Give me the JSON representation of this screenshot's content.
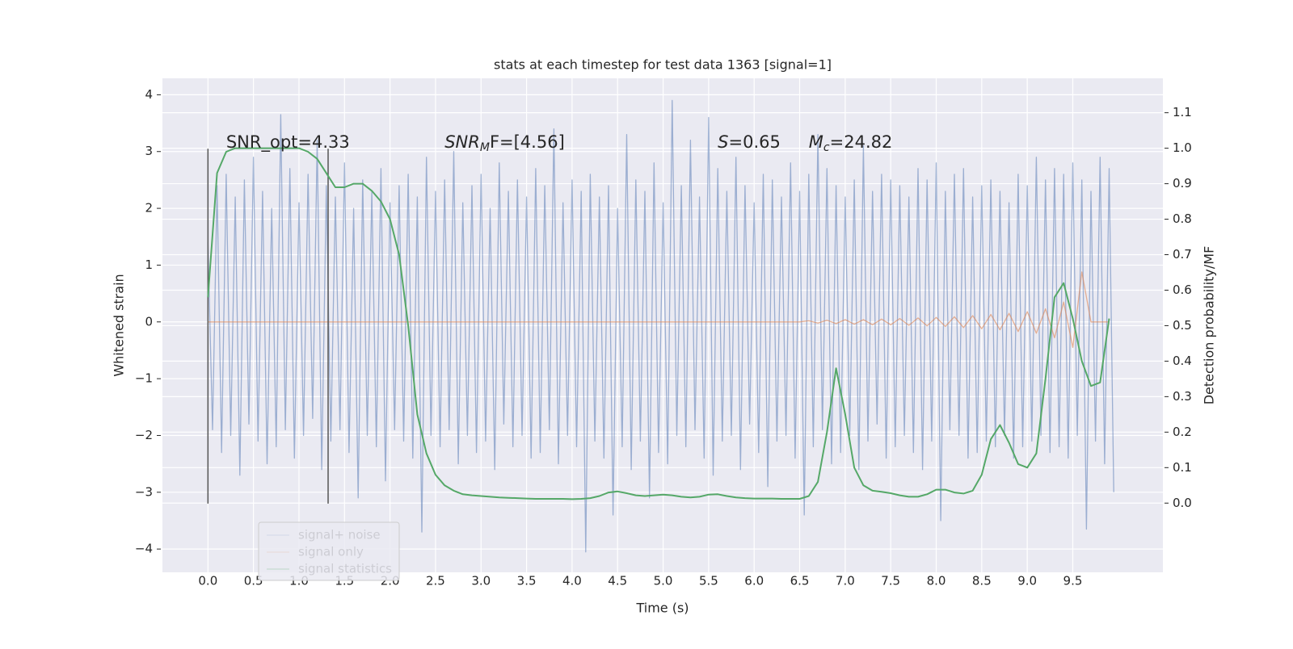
{
  "chart_data": {
    "type": "line",
    "title": "stats at each timestep for test data 1363 [signal=1]",
    "xlabel": "Time (s)",
    "ylabel": "Whitened strain",
    "y2label": "Detection probability/MF",
    "grid": true,
    "legend": "lower left",
    "xlim": [
      -0.5,
      10.49
    ],
    "ylim": [
      -4.41,
      4.29
    ],
    "y2lim": [
      -0.195,
      1.197
    ],
    "xticks": [
      {
        "value": 0,
        "label": "0.0"
      },
      0.5,
      {
        "value": 1,
        "label": "1.0"
      },
      1.5,
      {
        "value": 2,
        "label": "2.0"
      },
      2.5,
      {
        "value": 3,
        "label": "3.0"
      },
      3.5,
      {
        "value": 4,
        "label": "4.0"
      },
      4.5,
      {
        "value": 5,
        "label": "5.0"
      },
      5.5,
      {
        "value": 6,
        "label": "6.0"
      },
      6.5,
      {
        "value": 7,
        "label": "7.0"
      },
      7.5,
      {
        "value": 8,
        "label": "8.0"
      },
      8.5,
      {
        "value": 9,
        "label": "9.0"
      },
      9.5
    ],
    "yticks": [
      {
        "value": -4,
        "label": "−4"
      },
      {
        "value": -3,
        "label": "−3"
      },
      {
        "value": -2,
        "label": "−2"
      },
      {
        "value": -1,
        "label": "−1"
      },
      0,
      1,
      2,
      3,
      4
    ],
    "y2ticks": [
      {
        "value": 0,
        "label": "0.0"
      },
      0.1,
      0.2,
      0.3,
      0.4,
      0.5,
      0.6,
      0.7,
      0.8,
      0.9,
      {
        "value": 1,
        "label": "1.0"
      },
      1.1
    ],
    "annotations": [
      {
        "base": "SNR_opt=4.33"
      },
      {
        "base": "SNR",
        "sub": "M",
        "rest": "F=[4.56]"
      },
      {
        "base": "S",
        "rest": "=0.65"
      },
      {
        "base": "M",
        "sub": "c",
        "rest": "=24.82"
      }
    ],
    "vlines": {
      "x": [
        0,
        1.32
      ],
      "ymin": -3.2,
      "ymax": 3.05,
      "color": "#555555"
    },
    "x": [
      0,
      0.1,
      0.2,
      0.3,
      0.4,
      0.5,
      0.6,
      0.7,
      0.8,
      0.9,
      1,
      1.1,
      1.2,
      1.3,
      1.4,
      1.5,
      1.6,
      1.7,
      1.8,
      1.9,
      2,
      2.1,
      2.2,
      2.3,
      2.4,
      2.5,
      2.6,
      2.7,
      2.8,
      2.9,
      3,
      3.1,
      3.2,
      3.3,
      3.4,
      3.5,
      3.6,
      3.7,
      3.8,
      3.9,
      4,
      4.1,
      4.2,
      4.3,
      4.4,
      4.5,
      4.6,
      4.7,
      4.8,
      4.9,
      5,
      5.1,
      5.2,
      5.3,
      5.4,
      5.5,
      5.6,
      5.7,
      5.8,
      5.9,
      6,
      6.1,
      6.2,
      6.3,
      6.4,
      6.5,
      6.6,
      6.7,
      6.8,
      6.9,
      7,
      7.1,
      7.2,
      7.3,
      7.4,
      7.5,
      7.6,
      7.7,
      7.8,
      7.9,
      8,
      8.1,
      8.2,
      8.3,
      8.4,
      8.5,
      8.6,
      8.7,
      8.8,
      8.9,
      9,
      9.1,
      9.2,
      9.3,
      9.4,
      9.5,
      9.6,
      9.7,
      9.8,
      9.9
    ],
    "series": [
      {
        "name": "signal+ noise",
        "color": "#4c72b0",
        "alpha": 0.5,
        "x": [
          0,
          0.05,
          0.1,
          0.15,
          0.2,
          0.25,
          0.3,
          0.35,
          0.4,
          0.45,
          0.5,
          0.55,
          0.6,
          0.65,
          0.7,
          0.75,
          0.8,
          0.85,
          0.9,
          0.95,
          1,
          1.05,
          1.1,
          1.15,
          1.2,
          1.25,
          1.3,
          1.35,
          1.4,
          1.45,
          1.5,
          1.55,
          1.6,
          1.65,
          1.7,
          1.75,
          1.8,
          1.85,
          1.9,
          1.95,
          2,
          2.05,
          2.1,
          2.15,
          2.2,
          2.25,
          2.3,
          2.35,
          2.4,
          2.45,
          2.5,
          2.55,
          2.6,
          2.65,
          2.7,
          2.75,
          2.8,
          2.85,
          2.9,
          2.95,
          3,
          3.05,
          3.1,
          3.15,
          3.2,
          3.25,
          3.3,
          3.35,
          3.4,
          3.45,
          3.5,
          3.55,
          3.6,
          3.65,
          3.7,
          3.75,
          3.8,
          3.85,
          3.9,
          3.95,
          4,
          4.05,
          4.1,
          4.15,
          4.2,
          4.25,
          4.3,
          4.35,
          4.4,
          4.45,
          4.5,
          4.55,
          4.6,
          4.65,
          4.7,
          4.75,
          4.8,
          4.85,
          4.9,
          4.95,
          5,
          5.05,
          5.1,
          5.15,
          5.2,
          5.25,
          5.3,
          5.35,
          5.4,
          5.45,
          5.5,
          5.55,
          5.6,
          5.65,
          5.7,
          5.75,
          5.8,
          5.85,
          5.9,
          5.95,
          6,
          6.05,
          6.1,
          6.15,
          6.2,
          6.25,
          6.3,
          6.35,
          6.4,
          6.45,
          6.5,
          6.55,
          6.6,
          6.65,
          6.7,
          6.75,
          6.8,
          6.85,
          6.9,
          6.95,
          7,
          7.05,
          7.1,
          7.15,
          7.2,
          7.25,
          7.3,
          7.35,
          7.4,
          7.45,
          7.5,
          7.55,
          7.6,
          7.65,
          7.7,
          7.75,
          7.8,
          7.85,
          7.9,
          7.95,
          8,
          8.05,
          8.1,
          8.15,
          8.2,
          8.25,
          8.3,
          8.35,
          8.4,
          8.45,
          8.5,
          8.55,
          8.6,
          8.65,
          8.7,
          8.75,
          8.8,
          8.85,
          8.9,
          8.95,
          9,
          9.05,
          9.1,
          9.15,
          9.2,
          9.25,
          9.3,
          9.35,
          9.4,
          9.45,
          9.5,
          9.55,
          9.6,
          9.65,
          9.7,
          9.75,
          9.8,
          9.85,
          9.9,
          9.95
        ],
        "values": [
          1.4,
          -1.9,
          2.4,
          -2.3,
          2.6,
          -2.0,
          2.2,
          -2.7,
          2.5,
          -1.8,
          2.9,
          -2.1,
          2.3,
          -2.5,
          2.0,
          -2.2,
          3.65,
          -1.9,
          2.7,
          -2.4,
          2.1,
          -2.0,
          2.6,
          -1.7,
          3.2,
          -2.6,
          2.4,
          -2.1,
          2.2,
          -1.9,
          2.8,
          -2.3,
          2.0,
          -3.1,
          2.5,
          -2.0,
          2.3,
          -2.2,
          2.7,
          -2.8,
          2.1,
          -1.9,
          2.4,
          -2.1,
          2.6,
          -2.4,
          2.2,
          -3.7,
          2.9,
          -2.0,
          2.3,
          -2.2,
          2.5,
          -1.9,
          3.0,
          -2.5,
          2.1,
          -2.0,
          2.4,
          -2.3,
          2.6,
          -2.1,
          2.0,
          -2.6,
          2.8,
          -1.8,
          2.3,
          -2.2,
          2.5,
          -2.0,
          2.2,
          -2.4,
          2.7,
          -2.3,
          2.4,
          -1.9,
          3.4,
          -2.5,
          2.1,
          -2.0,
          2.5,
          -2.2,
          2.3,
          -4.05,
          2.6,
          -2.1,
          2.2,
          -2.4,
          2.4,
          -3.4,
          2.0,
          -2.2,
          3.3,
          -2.6,
          2.5,
          -2.1,
          2.3,
          -3.1,
          2.8,
          -2.3,
          2.1,
          -2.5,
          3.9,
          -2.0,
          2.4,
          -2.2,
          3.2,
          -1.9,
          2.2,
          -2.4,
          3.6,
          -2.7,
          2.7,
          -2.1,
          2.3,
          -2.0,
          2.9,
          -2.6,
          2.4,
          -1.8,
          2.1,
          -2.3,
          2.6,
          -2.9,
          2.5,
          -2.1,
          2.2,
          -2.0,
          2.8,
          -2.4,
          2.3,
          -3.4,
          2.6,
          -2.2,
          3.3,
          -1.9,
          2.7,
          -2.5,
          2.4,
          -2.3,
          2.2,
          -2.0,
          2.5,
          -2.6,
          3.1,
          -2.1,
          2.3,
          -1.8,
          2.6,
          -2.4,
          2.5,
          -2.2,
          2.4,
          -2.0,
          2.2,
          -2.3,
          2.7,
          -2.6,
          2.5,
          -2.1,
          2.8,
          -3.5,
          2.3,
          -1.9,
          2.6,
          -2.0,
          2.7,
          -2.4,
          2.2,
          -2.3,
          2.4,
          -2.1,
          2.5,
          -2.2,
          2.3,
          -2.0,
          2.1,
          -2.4,
          2.6,
          -2.2,
          2.4,
          -2.1,
          2.9,
          -2.0,
          2.5,
          -2.3,
          2.7,
          -2.2,
          2.6,
          -2.4,
          2.8,
          -2.0,
          2.5,
          -3.65,
          2.3,
          -2.1,
          2.9,
          -2.5,
          2.7,
          -3.0
        ]
      },
      {
        "name": "signal only",
        "color": "#dd8452",
        "alpha": 0.6,
        "values": [
          0,
          0,
          0,
          0,
          0,
          0,
          0,
          0,
          0,
          0,
          0,
          0,
          0,
          0,
          0,
          0,
          0,
          0,
          0,
          0,
          0,
          0,
          0,
          0,
          0,
          0,
          0,
          0,
          0,
          0,
          0,
          0,
          0,
          0,
          0,
          0,
          0,
          0,
          0,
          0,
          0,
          0,
          0,
          0,
          0,
          0,
          0,
          0,
          0,
          0,
          0,
          0,
          0,
          0,
          0,
          0,
          0,
          0,
          0,
          0,
          0,
          0,
          0,
          0,
          0,
          0,
          0.02,
          -0.02,
          0.03,
          -0.03,
          0.04,
          -0.04,
          0.04,
          -0.05,
          0.05,
          -0.05,
          0.06,
          -0.06,
          0.07,
          -0.07,
          0.08,
          -0.08,
          0.09,
          -0.1,
          0.11,
          -0.12,
          0.13,
          -0.14,
          0.15,
          -0.17,
          0.18,
          -0.2,
          0.23,
          -0.28,
          0.35,
          -0.45,
          0.88,
          0,
          0,
          0
        ]
      },
      {
        "name": "signal statistics",
        "color": "#55a868",
        "alpha": 1,
        "axis": "y2",
        "values": [
          0.58,
          0.93,
          0.99,
          1.0,
          1.0,
          1.0,
          1.0,
          1.0,
          1.0,
          1.0,
          1.0,
          0.99,
          0.97,
          0.93,
          0.89,
          0.89,
          0.9,
          0.9,
          0.88,
          0.85,
          0.8,
          0.7,
          0.5,
          0.25,
          0.14,
          0.08,
          0.05,
          0.035,
          0.025,
          0.022,
          0.02,
          0.018,
          0.016,
          0.015,
          0.014,
          0.013,
          0.012,
          0.012,
          0.012,
          0.012,
          0.011,
          0.012,
          0.014,
          0.02,
          0.03,
          0.033,
          0.028,
          0.022,
          0.02,
          0.022,
          0.024,
          0.022,
          0.018,
          0.016,
          0.018,
          0.024,
          0.025,
          0.02,
          0.016,
          0.014,
          0.013,
          0.013,
          0.013,
          0.012,
          0.012,
          0.012,
          0.02,
          0.06,
          0.2,
          0.38,
          0.25,
          0.1,
          0.05,
          0.035,
          0.032,
          0.028,
          0.022,
          0.018,
          0.018,
          0.025,
          0.038,
          0.038,
          0.03,
          0.027,
          0.035,
          0.08,
          0.18,
          0.22,
          0.17,
          0.11,
          0.1,
          0.14,
          0.35,
          0.58,
          0.62,
          0.52,
          0.4,
          0.33,
          0.34,
          0.52
        ]
      }
    ]
  }
}
